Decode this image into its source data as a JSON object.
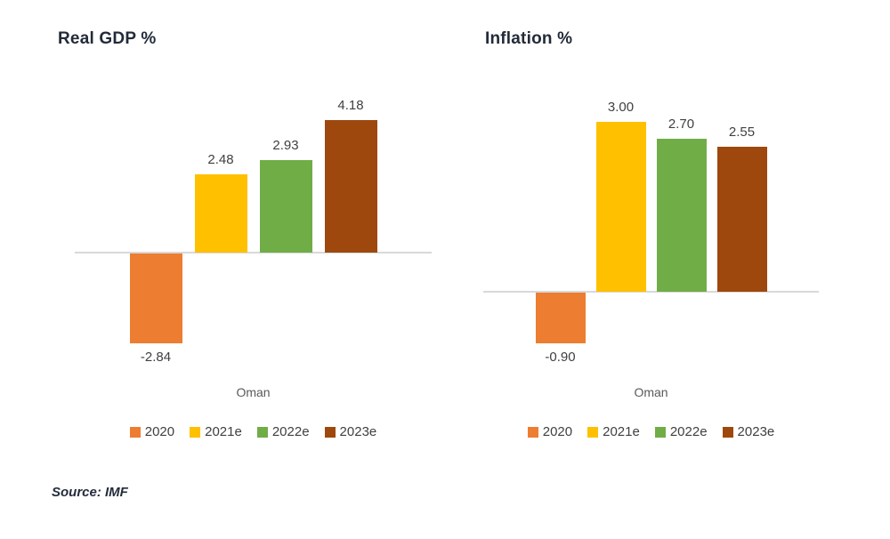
{
  "source": "Source: IMF",
  "colors": {
    "background": "#ffffff",
    "axis_line": "#d9d9d9",
    "title_text": "#232b39",
    "value_label_text": "#404040",
    "category_label_text": "#595959",
    "legend_text": "#404040",
    "source_text": "#242c3a",
    "series_2020": "#ED7D31",
    "series_2021e": "#FFC000",
    "series_2022e": "#70AD47",
    "series_2023e": "#9E480E"
  },
  "legend": [
    {
      "label": "2020",
      "color": "#ED7D31"
    },
    {
      "label": "2021e",
      "color": "#FFC000"
    },
    {
      "label": "2022e",
      "color": "#70AD47"
    },
    {
      "label": "2023e",
      "color": "#9E480E"
    }
  ],
  "chart_data": [
    {
      "type": "bar",
      "title": "Real GDP %",
      "categories": [
        "Oman"
      ],
      "series": [
        {
          "name": "2020",
          "color": "#ED7D31",
          "values": [
            -2.84
          ]
        },
        {
          "name": "2021e",
          "color": "#FFC000",
          "values": [
            2.48
          ]
        },
        {
          "name": "2022e",
          "color": "#70AD47",
          "values": [
            2.93
          ]
        },
        {
          "name": "2023e",
          "color": "#9E480E",
          "values": [
            4.18
          ]
        }
      ],
      "data_labels": [
        "-2.84",
        "2.48",
        "2.93",
        "4.18"
      ],
      "ylim": [
        -4,
        5
      ],
      "grid": false,
      "legend_position": "bottom",
      "xlabel": "",
      "ylabel": ""
    },
    {
      "type": "bar",
      "title": "Inflation %",
      "categories": [
        "Oman"
      ],
      "series": [
        {
          "name": "2020",
          "color": "#ED7D31",
          "values": [
            -0.9
          ]
        },
        {
          "name": "2021e",
          "color": "#FFC000",
          "values": [
            3.0
          ]
        },
        {
          "name": "2022e",
          "color": "#70AD47",
          "values": [
            2.7
          ]
        },
        {
          "name": "2023e",
          "color": "#9E480E",
          "values": [
            2.55
          ]
        }
      ],
      "data_labels": [
        "-0.90",
        "3.00",
        "2.70",
        "2.55"
      ],
      "ylim": [
        -1.5,
        3.5
      ],
      "grid": false,
      "legend_position": "bottom",
      "xlabel": "",
      "ylabel": ""
    }
  ]
}
